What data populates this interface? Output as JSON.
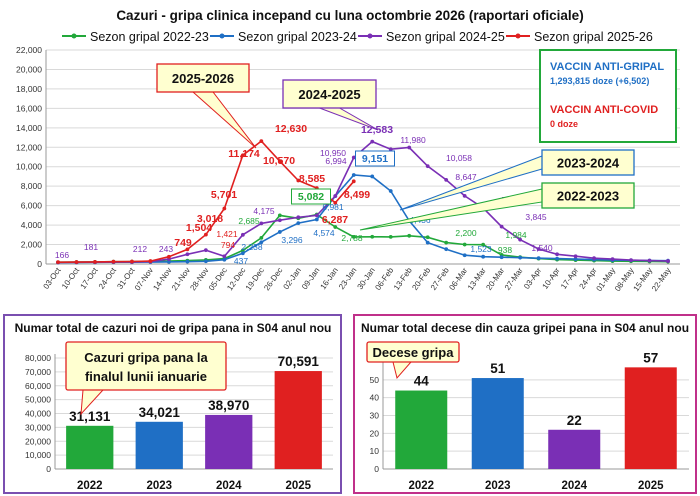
{
  "chart_data": [
    {
      "type": "line",
      "title": "Cazuri - gripa clinica incepand cu luna octombrie 2026 (raportari oficiale)",
      "ylim": [
        0,
        22000
      ],
      "yticks": [
        "0",
        "2,000",
        "4,000",
        "6,000",
        "8,000",
        "10,000",
        "12,000",
        "14,000",
        "16,000",
        "18,000",
        "20,000",
        "22,000"
      ],
      "categories": [
        "03-Oct",
        "10-Oct",
        "17-Oct",
        "24-Oct",
        "31-Oct",
        "07-Nov",
        "14-Nov",
        "21-Nov",
        "28-Nov",
        "05-Dec",
        "12-Dec",
        "19-Dec",
        "26-Dec",
        "02-Jan",
        "09-Jan",
        "16-Jan",
        "23-Jan",
        "30-Jan",
        "06-Feb",
        "13-Feb",
        "20-Feb",
        "27-Feb",
        "06-Mar",
        "13-Mar",
        "20-Mar",
        "27-Mar",
        "03-Apr",
        "10-Apr",
        "17-Apr",
        "24-Apr",
        "01-May",
        "08-May",
        "15-May",
        "22-May"
      ],
      "series": [
        {
          "name": "Sezon gripal 2022-23",
          "color": "#22a83a",
          "values": [
            180,
            200,
            220,
            240,
            250,
            260,
            300,
            350,
            420,
            550,
            1400,
            2685,
            5000,
            4700,
            5082,
            3800,
            2788,
            2800,
            2790,
            2900,
            2750,
            2200,
            2000,
            1984,
            938,
            700,
            550,
            450,
            400,
            350,
            300,
            280,
            260,
            240
          ]
        },
        {
          "name": "Sezon gripal 2023-24",
          "color": "#1f6fc5",
          "values": [
            150,
            160,
            170,
            180,
            190,
            200,
            220,
            240,
            280,
            437,
            1100,
            2238,
            3296,
            4200,
            4574,
            6981,
            9151,
            9000,
            7500,
            4436,
            2200,
            1523,
            900,
            750,
            700,
            650,
            600,
            550,
            500,
            450,
            400,
            380,
            360,
            340
          ]
        },
        {
          "name": "Sezon gripal 2024-25",
          "color": "#7a2fb5",
          "values": [
            166,
            181,
            190,
            200,
            212,
            243,
            500,
            1000,
            1421,
            794,
            3000,
            4175,
            4500,
            4800,
            5000,
            6994,
            10950,
            12583,
            11800,
            11980,
            10058,
            8647,
            7000,
            5752,
            3845,
            2500,
            1540,
            1000,
            800,
            600,
            500,
            400,
            350,
            300
          ]
        },
        {
          "name": "Sezon gripal 2025-26",
          "color": "#e02020",
          "values": [
            190,
            200,
            220,
            240,
            260,
            300,
            749,
            1504,
            3018,
            5701,
            11174,
            12630,
            10570,
            8585,
            7800,
            6287,
            8499,
            null,
            null,
            null,
            null,
            null,
            null,
            null,
            null,
            null,
            null,
            null,
            null,
            null,
            null,
            null,
            null,
            null
          ]
        }
      ],
      "data_labels": [
        {
          "text": "166"
        },
        {
          "text": "181"
        },
        {
          "text": "212"
        },
        {
          "text": "243"
        },
        {
          "text": "749"
        },
        {
          "text": "1,504"
        },
        {
          "text": "3,018"
        },
        {
          "text": "5,701"
        },
        {
          "text": "11,174"
        },
        {
          "text": "12,630"
        },
        {
          "text": "10,570"
        },
        {
          "text": "8,585"
        },
        {
          "text": "8,499"
        },
        {
          "text": "6,287"
        },
        {
          "text": "1,421"
        },
        {
          "text": "794"
        },
        {
          "text": "437"
        },
        {
          "text": "2,685"
        },
        {
          "text": "2,238"
        },
        {
          "text": "4,175"
        },
        {
          "text": "3,296"
        },
        {
          "text": "5,082"
        },
        {
          "text": "4,574"
        },
        {
          "text": "10,950"
        },
        {
          "text": "6,994"
        },
        {
          "text": "6,981"
        },
        {
          "text": "9,151"
        },
        {
          "text": "12,583"
        },
        {
          "text": "11,980"
        },
        {
          "text": "10,058"
        },
        {
          "text": "8,647"
        },
        {
          "text": "5,752"
        },
        {
          "text": "3,845"
        },
        {
          "text": "2,788"
        },
        {
          "text": "4,436"
        },
        {
          "text": "2,200"
        },
        {
          "text": "1,523"
        },
        {
          "text": "1,984"
        },
        {
          "text": "938"
        },
        {
          "text": "1,540"
        }
      ],
      "callouts": [
        {
          "text": "2025-2026",
          "color": "#e02020"
        },
        {
          "text": "2024-2025",
          "color": "#7a2fb5"
        },
        {
          "text": "2023-2024",
          "color": "#1f6fc5"
        },
        {
          "text": "2022-2023",
          "color": "#22a83a"
        }
      ],
      "infobox": {
        "vaccin_gripal_title": "VACCIN ANTI-GRIPAL",
        "vaccin_gripal_value": "1,293,815 doze (+6,502)",
        "vaccin_covid_title": "VACCIN ANTI-COVID",
        "vaccin_covid_value": "0 doze"
      }
    },
    {
      "type": "bar",
      "title": "Numar total de cazuri noi de gripa pana in S04 anul nou",
      "categories": [
        "2022",
        "2023",
        "2024",
        "2025"
      ],
      "values": [
        31131,
        34021,
        38970,
        70591
      ],
      "value_labels": [
        "31,131",
        "34,021",
        "38,970",
        "70,591"
      ],
      "colors": [
        "#22a83a",
        "#1f6fc5",
        "#7a2fb5",
        "#e02020"
      ],
      "ylim": [
        0,
        80000
      ],
      "yticks": [
        "0",
        "10,000",
        "20,000",
        "30,000",
        "40,000",
        "50,000",
        "60,000",
        "70,000",
        "80,000"
      ],
      "callout": "Cazuri gripa pana la finalul lunii ianuarie"
    },
    {
      "type": "bar",
      "title": "Numar total decese din cauza gripei pana in S04 anul nou",
      "categories": [
        "2022",
        "2023",
        "2024",
        "2025"
      ],
      "values": [
        44,
        51,
        22,
        57
      ],
      "value_labels": [
        "44",
        "51",
        "22",
        "57"
      ],
      "colors": [
        "#22a83a",
        "#1f6fc5",
        "#7a2fb5",
        "#e02020"
      ],
      "ylim": [
        0,
        60
      ],
      "yticks": [
        "0",
        "10",
        "20",
        "30",
        "40",
        "50"
      ],
      "callout": "Decese gripa"
    }
  ]
}
